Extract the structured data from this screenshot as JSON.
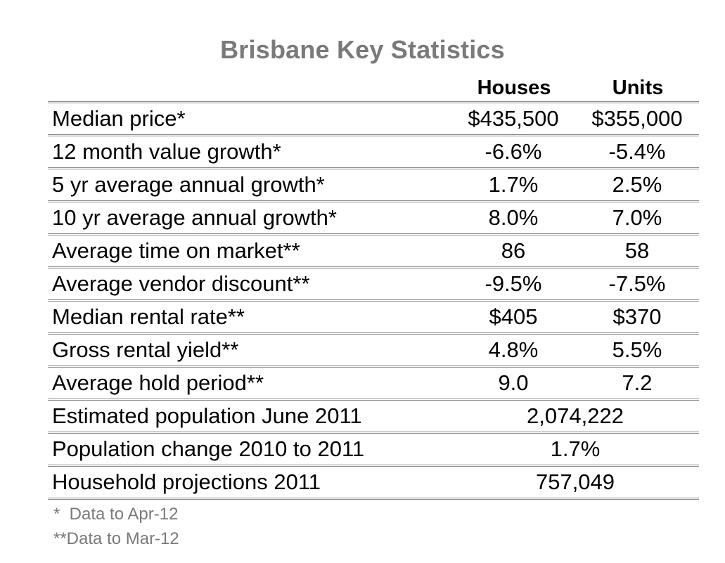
{
  "title": "Brisbane Key Statistics",
  "columns": {
    "houses": "Houses",
    "units": "Units"
  },
  "rows": [
    {
      "label": "Median price*",
      "houses": "$435,500",
      "units": "$355,000"
    },
    {
      "label": "12 month value growth*",
      "houses": "-6.6%",
      "units": "-5.4%"
    },
    {
      "label": "5 yr average annual growth*",
      "houses": "1.7%",
      "units": "2.5%"
    },
    {
      "label": "10 yr average annual growth*",
      "houses": "8.0%",
      "units": "7.0%"
    },
    {
      "label": "Average time on market**",
      "houses": "86",
      "units": "58"
    },
    {
      "label": "Average vendor discount**",
      "houses": "-9.5%",
      "units": "-7.5%"
    },
    {
      "label": "Median rental rate**",
      "houses": "$405",
      "units": "$370"
    },
    {
      "label": "Gross rental yield**",
      "houses": "4.8%",
      "units": "5.5%"
    },
    {
      "label": "Average hold period**",
      "houses": "9.0",
      "units": "7.2"
    },
    {
      "label": "Estimated population June 2011",
      "value": "2,074,222"
    },
    {
      "label": "Population change 2010 to 2011",
      "value": "1.7%"
    },
    {
      "label": "Household projections 2011",
      "value": "757,049"
    }
  ],
  "footnotes": [
    "*  Data to Apr-12",
    "**Data to Mar-12"
  ]
}
